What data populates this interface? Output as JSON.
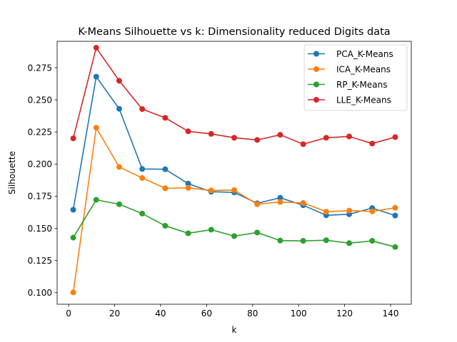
{
  "chart_data": {
    "type": "line",
    "title": "K-Means Silhouette vs k: Dimensionality reduced Digits data",
    "xlabel": "k",
    "ylabel": "Silhouette",
    "xlim": [
      -5,
      149
    ],
    "ylim": [
      0.091,
      0.2955
    ],
    "xticks": [
      0,
      20,
      40,
      60,
      80,
      100,
      120,
      140
    ],
    "yticks": [
      0.1,
      0.125,
      0.15,
      0.175,
      0.2,
      0.225,
      0.25,
      0.275
    ],
    "ytick_labels": [
      "0.100",
      "0.125",
      "0.150",
      "0.175",
      "0.200",
      "0.225",
      "0.250",
      "0.275"
    ],
    "grid": false,
    "legend_position": "top-right",
    "x": [
      2,
      12,
      22,
      32,
      42,
      52,
      62,
      72,
      82,
      92,
      102,
      112,
      122,
      132,
      142
    ],
    "series": [
      {
        "name": "PCA_K-Means",
        "color": "#1f77b4",
        "values": [
          0.1645,
          0.268,
          0.243,
          0.1962,
          0.196,
          0.1848,
          0.1785,
          0.178,
          0.1695,
          0.1738,
          0.168,
          0.1602,
          0.161,
          0.1658,
          0.16
        ]
      },
      {
        "name": "ICA_K-Means",
        "color": "#ff7f0e",
        "values": [
          0.1002,
          0.2283,
          0.1978,
          0.1892,
          0.1812,
          0.1815,
          0.1795,
          0.1798,
          0.1688,
          0.1705,
          0.1698,
          0.163,
          0.1638,
          0.1632,
          0.166
        ]
      },
      {
        "name": "RP_K-Means",
        "color": "#2ca02c",
        "values": [
          0.1428,
          0.1722,
          0.1688,
          0.1615,
          0.152,
          0.1462,
          0.149,
          0.144,
          0.1468,
          0.1405,
          0.1403,
          0.1408,
          0.1385,
          0.1403,
          0.1355
        ]
      },
      {
        "name": "LLE_K-Means",
        "color": "#d62728",
        "values": [
          0.22,
          0.2905,
          0.2648,
          0.2428,
          0.236,
          0.2255,
          0.2235,
          0.2205,
          0.2188,
          0.2228,
          0.2155,
          0.2205,
          0.2215,
          0.216,
          0.221
        ]
      }
    ]
  }
}
